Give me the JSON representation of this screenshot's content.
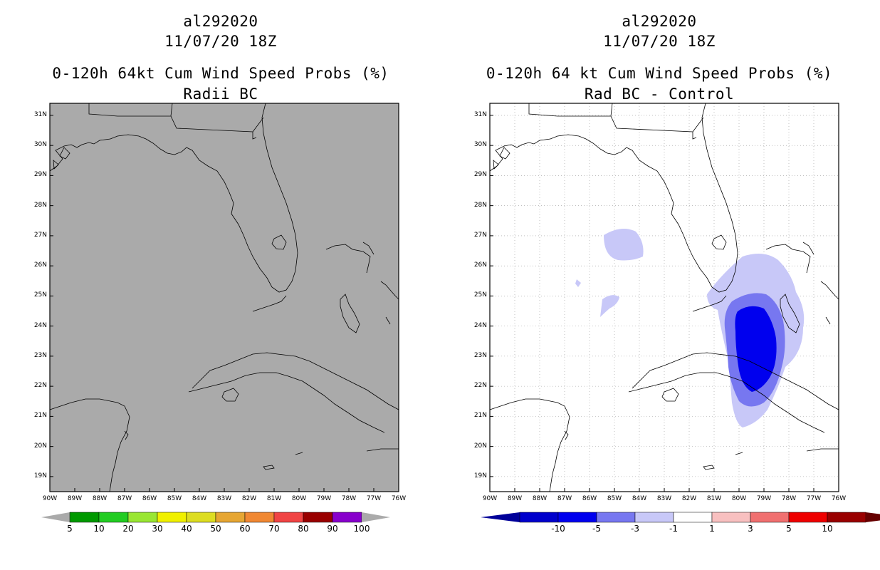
{
  "left_panel": {
    "storm_id": "al292020",
    "datetime": "11/07/20 18Z",
    "product": "0-120h 64kt Cum Wind Speed Probs (%)",
    "subtitle": "Radii BC",
    "background_color": "#aaaaaa",
    "colorbar": {
      "colors": [
        "#009900",
        "#22cc22",
        "#99e633",
        "#f0f000",
        "#dddd22",
        "#e6a633",
        "#f08833",
        "#f04444",
        "#990000",
        "#8800cc"
      ],
      "labels": [
        "5",
        "10",
        "20",
        "30",
        "40",
        "50",
        "60",
        "70",
        "80",
        "90",
        "100"
      ]
    }
  },
  "right_panel": {
    "storm_id": "al292020",
    "datetime": "11/07/20 18Z",
    "product": "0-120h 64 kt Cum Wind Speed Probs (%)",
    "subtitle": "Rad BC - Control",
    "background_color": "#ffffff",
    "colorbar": {
      "colors": [
        "#0000cc",
        "#0000ee",
        "#7777f0",
        "#c8c8f8",
        "#ffffff",
        "#f8c0c0",
        "#f07070",
        "#ee0000",
        "#990000"
      ],
      "labels": [
        "-10",
        "-5",
        "-3",
        "-1",
        "1",
        "3",
        "5",
        "10"
      ]
    }
  },
  "map": {
    "lat_labels": [
      "31N",
      "30N",
      "29N",
      "28N",
      "27N",
      "26N",
      "25N",
      "24N",
      "23N",
      "22N",
      "21N",
      "20N",
      "19N"
    ],
    "lon_labels": [
      "90W",
      "89W",
      "88W",
      "87W",
      "86W",
      "85W",
      "84W",
      "83W",
      "82W",
      "81W",
      "80W",
      "79W",
      "78W",
      "77W",
      "76W"
    ],
    "lon_min": -90,
    "lon_max": -76,
    "lat_min": 18.5,
    "lat_max": 31.4
  }
}
